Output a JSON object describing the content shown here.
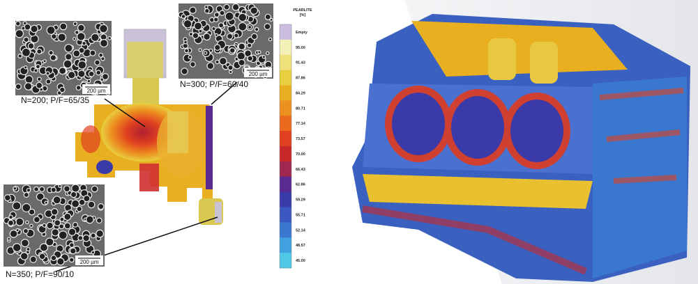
{
  "micrographs": [
    {
      "label": "N=200; P/F=65/35",
      "scale": "200 µm"
    },
    {
      "label": "N=300; P/F=60/40",
      "scale": "200 µm"
    },
    {
      "label": "N=350; P/F=90/10",
      "scale": "200 µm"
    }
  ],
  "legend": {
    "title": "PEARLITE",
    "unit": "[%]",
    "labels": [
      "Empty",
      "95.00",
      "91.43",
      "87.86",
      "84.29",
      "80.71",
      "77.14",
      "73.57",
      "70.00",
      "66.43",
      "62.86",
      "59.29",
      "55.71",
      "52.14",
      "48.57",
      "45.00"
    ]
  }
}
